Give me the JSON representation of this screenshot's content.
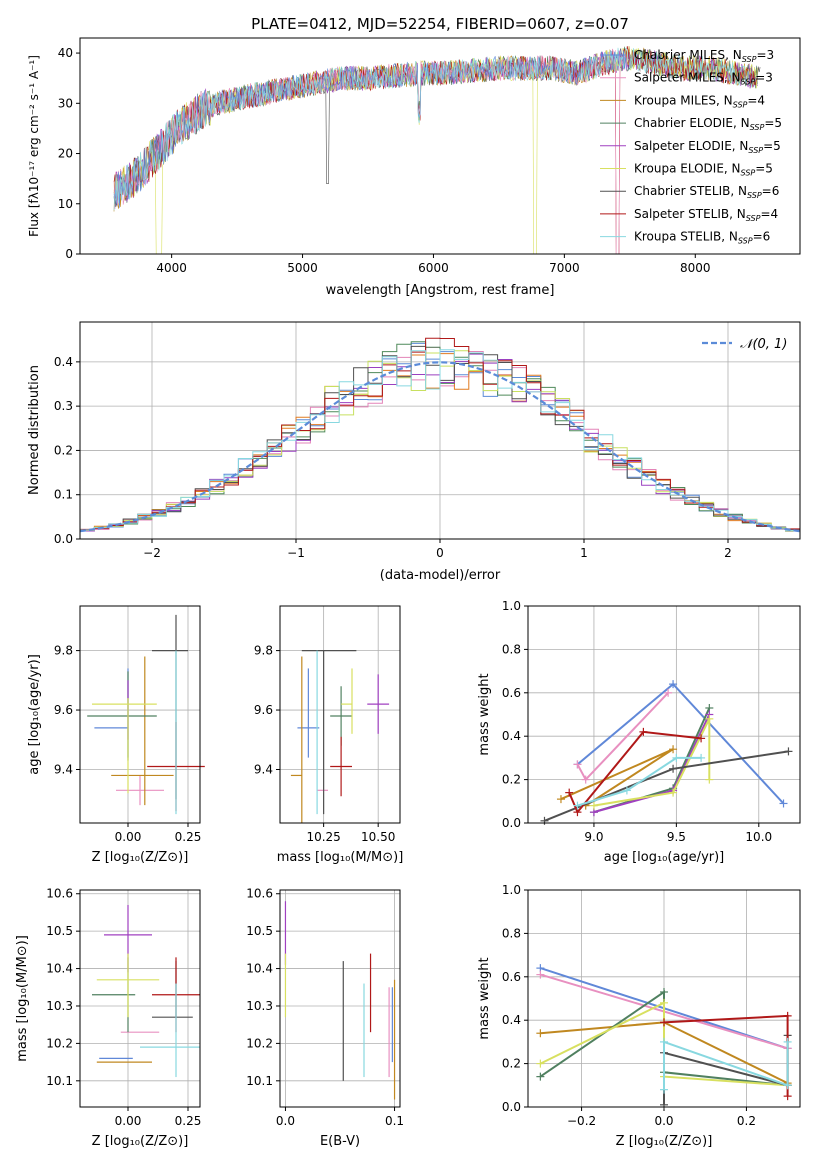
{
  "colors": [
    "#6088d8",
    "#e890c0",
    "#c08820",
    "#508060",
    "#a040c0",
    "#d8e060",
    "#505050",
    "#b01818",
    "#88d8e0"
  ],
  "colors_line": {
    "blue": "#5b8bd8",
    "pink": "#e384b8",
    "orange": "#e07b20",
    "green": "#4f8a5a",
    "purple": "#9a40c0",
    "yellow": "#c8e060",
    "gray": "#505050",
    "red": "#b01818",
    "cyan": "#88d8e0"
  },
  "chart_data": [
    {
      "id": "spectrum",
      "type": "line",
      "title": "PLATE=0412, MJD=52254, FIBERID=0607, z=0.07",
      "xlabel": "wavelength [Angstrom, rest frame]",
      "ylabel": "Flux [fλ10⁻¹⁷ erg cm⁻² s⁻¹ A⁻¹]",
      "xlim": [
        3300,
        8800
      ],
      "ylim": [
        0,
        43
      ],
      "xticks": [
        "4000",
        "5000",
        "6000",
        "7000",
        "8000"
      ],
      "yticks": [
        "0",
        "10",
        "20",
        "30",
        "40"
      ],
      "legend_position": "right",
      "series": [
        {
          "name": "Chabrier MILES, N_SSP=3",
          "color": "#6088d8"
        },
        {
          "name": "Salpeter MILES, N_SSP=3",
          "color": "#e890c0"
        },
        {
          "name": "Kroupa MILES, N_SSP=4",
          "color": "#c08820"
        },
        {
          "name": "Chabrier ELODIE, N_SSP=5",
          "color": "#508060"
        },
        {
          "name": "Salpeter ELODIE, N_SSP=5",
          "color": "#a040c0"
        },
        {
          "name": "Kroupa ELODIE, N_SSP=5",
          "color": "#d8e060"
        },
        {
          "name": "Chabrier STELIB, N_SSP=6",
          "color": "#505050"
        },
        {
          "name": "Salpeter STELIB, N_SSP=4",
          "color": "#b01818"
        },
        {
          "name": "Kroupa STELIB, N_SSP=6",
          "color": "#88d8e0"
        }
      ],
      "continuum": {
        "x": [
          3550,
          3650,
          3750,
          3850,
          3950,
          4050,
          4150,
          4250,
          4350,
          4500,
          4700,
          4900,
          5100,
          5300,
          5500,
          5700,
          5900,
          6100,
          6300,
          6500,
          6700,
          6900,
          7100,
          7300,
          7500,
          7700,
          7900,
          8100,
          8300,
          8500
        ],
        "y": [
          12,
          14,
          16,
          19,
          22,
          25,
          27,
          29,
          30,
          31,
          32,
          33,
          34,
          35,
          35,
          35.5,
          36,
          36,
          36.5,
          37,
          37,
          37,
          36,
          38,
          39,
          38,
          37,
          37,
          36,
          35
        ]
      }
    },
    {
      "id": "residuals",
      "type": "bar",
      "xlabel": "(data-model)/error",
      "ylabel": "Normed distribution",
      "xlim": [
        -2.5,
        2.5
      ],
      "ylim": [
        0,
        0.49
      ],
      "xticks": [
        "−2",
        "−1",
        "0",
        "1",
        "2"
      ],
      "yticks": [
        "0.0",
        "0.1",
        "0.2",
        "0.3",
        "0.4"
      ],
      "legend": "𝒩(0, 1)",
      "legend_position": "top-right",
      "bin_width": 0.1,
      "gaussian": {
        "mean": 0,
        "sigma": 1
      }
    },
    {
      "id": "age-vs-Z",
      "type": "scatter",
      "xlabel": "Z [log₁₀(Z/Z⊙)]",
      "ylabel": "age  [log₁₀(age/yr)]",
      "xlim": [
        -0.2,
        0.3
      ],
      "ylim": [
        9.22,
        9.95
      ],
      "xticks": [
        "0.00",
        "0.25"
      ],
      "yticks": [
        "9.4",
        "9.6",
        "9.8"
      ],
      "points": [
        {
          "x": 0.0,
          "xerr": [
            0.14,
            0.0
          ],
          "y": 9.54,
          "yerr": [
            0.1,
            0.2
          ],
          "c": 0
        },
        {
          "x": 0.05,
          "xerr": [
            0.1,
            0.1
          ],
          "y": 9.33,
          "yerr": [
            0.05,
            0.05
          ],
          "c": 1
        },
        {
          "x": 0.07,
          "xerr": [
            0.14,
            0.12
          ],
          "y": 9.38,
          "yerr": [
            0.1,
            0.4
          ],
          "c": 2
        },
        {
          "x": 0.0,
          "xerr": [
            0.17,
            0.12
          ],
          "y": 9.58,
          "yerr": [
            0.15,
            0.15
          ],
          "c": 3
        },
        {
          "x": 0.0,
          "xerr": [
            0.0,
            0.0
          ],
          "y": 9.6,
          "yerr": [
            0.1,
            0.1
          ],
          "c": 4
        },
        {
          "x": 0.0,
          "xerr": [
            0.15,
            0.12
          ],
          "y": 9.62,
          "yerr": [
            0.3,
            0.02
          ],
          "c": 5
        },
        {
          "x": 0.2,
          "xerr": [
            0.1,
            0.05
          ],
          "y": 9.8,
          "yerr": [
            0.5,
            0.12
          ],
          "c": 6
        },
        {
          "x": 0.2,
          "xerr": [
            0.12,
            0.12
          ],
          "y": 9.41,
          "yerr": [
            0.15,
            0.15
          ],
          "c": 7
        },
        {
          "x": 0.2,
          "xerr": [
            0.0,
            0.0
          ],
          "y": 9.6,
          "yerr": [
            0.35,
            0.2
          ],
          "c": 8
        }
      ]
    },
    {
      "id": "age-vs-mass",
      "type": "scatter",
      "xlabel": "mass [log₁₀(M/M⊙)]",
      "ylabel": "",
      "xlim": [
        10.05,
        10.6
      ],
      "ylim": [
        9.22,
        9.95
      ],
      "xticks": [
        "10.25",
        "10.50"
      ],
      "yticks": [
        "9.4",
        "9.6",
        "9.8"
      ],
      "points": [
        {
          "x": 10.18,
          "xerr": [
            0.05,
            0.05
          ],
          "y": 9.54,
          "yerr": [
            0.1,
            0.2
          ],
          "c": 0
        },
        {
          "x": 10.27,
          "xerr": [
            0.05,
            0.0
          ],
          "y": 9.33,
          "yerr": [
            0.0,
            0.0
          ],
          "c": 1
        },
        {
          "x": 10.15,
          "xerr": [
            0.05,
            0.0
          ],
          "y": 9.38,
          "yerr": [
            0.16,
            0.4
          ],
          "c": 2
        },
        {
          "x": 10.33,
          "xerr": [
            0.05,
            0.05
          ],
          "y": 9.58,
          "yerr": [
            0.1,
            0.1
          ],
          "c": 3
        },
        {
          "x": 10.5,
          "xerr": [
            0.05,
            0.05
          ],
          "y": 9.62,
          "yerr": [
            0.1,
            0.1
          ],
          "c": 4
        },
        {
          "x": 10.38,
          "xerr": [
            0.05,
            0.0
          ],
          "y": 9.62,
          "yerr": [
            0.1,
            0.12
          ],
          "c": 5
        },
        {
          "x": 10.25,
          "xerr": [
            0.1,
            0.15
          ],
          "y": 9.8,
          "yerr": [
            0.55,
            0.0
          ],
          "c": 6
        },
        {
          "x": 10.33,
          "xerr": [
            0.05,
            0.05
          ],
          "y": 9.41,
          "yerr": [
            0.1,
            0.1
          ],
          "c": 7
        },
        {
          "x": 10.22,
          "xerr": [
            0.0,
            0.0
          ],
          "y": 9.5,
          "yerr": [
            0.25,
            0.3
          ],
          "c": 8
        }
      ]
    },
    {
      "id": "mass-weight-vs-age",
      "type": "line",
      "xlabel": "age  [log₁₀(age/yr)]",
      "ylabel": "mass weight",
      "xlim": [
        8.6,
        10.25
      ],
      "ylim": [
        0,
        1
      ],
      "xticks": [
        "9.0",
        "9.5",
        "10.0"
      ],
      "yticks": [
        "0.0",
        "0.2",
        "0.4",
        "0.6",
        "0.8",
        "1.0"
      ],
      "series": [
        {
          "c": 0,
          "x": [
            8.9,
            9.48,
            10.15
          ],
          "y": [
            0.27,
            0.64,
            0.09
          ]
        },
        {
          "c": 1,
          "x": [
            8.9,
            8.95,
            9.45
          ],
          "y": [
            0.27,
            0.2,
            0.6
          ]
        },
        {
          "c": 2,
          "x": [
            8.8,
            9.48,
            8.95
          ],
          "y": [
            0.11,
            0.34,
            0.08
          ]
        },
        {
          "c": 3,
          "x": [
            9.0,
            9.48,
            9.7
          ],
          "y": [
            0.05,
            0.16,
            0.53
          ]
        },
        {
          "c": 4,
          "x": [
            9.0,
            9.48,
            9.7
          ],
          "y": [
            0.05,
            0.15,
            0.5
          ]
        },
        {
          "c": 5,
          "x": [
            9.0,
            9.48,
            9.7,
            9.7
          ],
          "y": [
            0.08,
            0.14,
            0.48,
            0.2
          ]
        },
        {
          "c": 6,
          "x": [
            8.7,
            9.48,
            10.18
          ],
          "y": [
            0.01,
            0.25,
            0.33
          ]
        },
        {
          "c": 7,
          "x": [
            8.85,
            8.9,
            9.3,
            9.65
          ],
          "y": [
            0.14,
            0.05,
            0.42,
            0.39
          ]
        },
        {
          "c": 8,
          "x": [
            8.9,
            9.2,
            9.5,
            9.65
          ],
          "y": [
            0.08,
            0.15,
            0.3,
            0.3
          ]
        }
      ]
    },
    {
      "id": "mass-vs-Z",
      "type": "scatter",
      "xlabel": "Z [log₁₀(Z/Z⊙)]",
      "ylabel": "mass [log₁₀(M/M⊙)]",
      "xlim": [
        -0.2,
        0.3
      ],
      "ylim": [
        10.03,
        10.61
      ],
      "xticks": [
        "0.00",
        "0.25"
      ],
      "yticks": [
        "10.1",
        "10.2",
        "10.3",
        "10.4",
        "10.5",
        "10.6"
      ],
      "points": [
        {
          "x": 0.0,
          "xerr": [
            0.12,
            0.02
          ],
          "y": 10.16,
          "yerr": [
            0.0,
            0.0
          ],
          "c": 0
        },
        {
          "x": 0.05,
          "xerr": [
            0.08,
            0.08
          ],
          "y": 10.23,
          "yerr": [
            0.0,
            0.0
          ],
          "c": 1
        },
        {
          "x": 0.0,
          "xerr": [
            0.13,
            0.1
          ],
          "y": 10.15,
          "yerr": [
            0.0,
            0.0
          ],
          "c": 2
        },
        {
          "x": 0.0,
          "xerr": [
            0.15,
            0.03
          ],
          "y": 10.33,
          "yerr": [
            0.1,
            0.1
          ],
          "c": 3
        },
        {
          "x": 0.0,
          "xerr": [
            0.1,
            0.1
          ],
          "y": 10.49,
          "yerr": [
            0.1,
            0.08
          ],
          "c": 4
        },
        {
          "x": 0.0,
          "xerr": [
            0.13,
            0.13
          ],
          "y": 10.37,
          "yerr": [
            0.1,
            0.07
          ],
          "c": 5
        },
        {
          "x": 0.2,
          "xerr": [
            0.1,
            0.07
          ],
          "y": 10.27,
          "yerr": [
            0.0,
            0.15
          ],
          "c": 6
        },
        {
          "x": 0.2,
          "xerr": [
            0.1,
            0.1
          ],
          "y": 10.33,
          "yerr": [
            0.1,
            0.1
          ],
          "c": 7
        },
        {
          "x": 0.2,
          "xerr": [
            0.15,
            0.1
          ],
          "y": 10.19,
          "yerr": [
            0.08,
            0.17
          ],
          "c": 8
        }
      ]
    },
    {
      "id": "mass-vs-EBV",
      "type": "scatter",
      "xlabel": "E(B-V)",
      "ylabel": "",
      "xlim": [
        -0.005,
        0.105
      ],
      "ylim": [
        10.03,
        10.61
      ],
      "xticks": [
        "0.0",
        "0.1"
      ],
      "yticks": [
        "10.1",
        "10.2",
        "10.3",
        "10.4",
        "10.5",
        "10.6"
      ],
      "points": [
        {
          "x": 0.0,
          "xerr": [
            0,
            0
          ],
          "y": 10.49,
          "yerr": [
            0.08,
            0.09
          ],
          "c": 4
        },
        {
          "x": 0.0,
          "xerr": [
            0,
            0
          ],
          "y": 10.37,
          "yerr": [
            0.1,
            0.07
          ],
          "c": 5
        },
        {
          "x": 0.053,
          "xerr": [
            0,
            0
          ],
          "y": 10.27,
          "yerr": [
            0.17,
            0.15
          ],
          "c": 6
        },
        {
          "x": 0.078,
          "xerr": [
            0,
            0
          ],
          "y": 10.33,
          "yerr": [
            0.1,
            0.11
          ],
          "c": 7
        },
        {
          "x": 0.072,
          "xerr": [
            0,
            0
          ],
          "y": 10.23,
          "yerr": [
            0.12,
            0.13
          ],
          "c": 8
        },
        {
          "x": 0.1,
          "xerr": [
            0,
            0
          ],
          "y": 10.17,
          "yerr": [
            0.12,
            0.2
          ],
          "c": 2
        },
        {
          "x": 0.095,
          "xerr": [
            0,
            0
          ],
          "y": 10.23,
          "yerr": [
            0.12,
            0.12
          ],
          "c": 1
        },
        {
          "x": 0.098,
          "xerr": [
            0,
            0
          ],
          "y": 10.25,
          "yerr": [
            0.1,
            0.1
          ],
          "c": 0
        }
      ]
    },
    {
      "id": "mass-weight-vs-Z",
      "type": "line",
      "xlabel": "Z [log₁₀(Z/Z⊙)]",
      "ylabel": "mass weight",
      "xlim": [
        -0.33,
        0.33
      ],
      "ylim": [
        0,
        1
      ],
      "xticks": [
        "−0.2",
        "0.0",
        "0.2"
      ],
      "yticks": [
        "0.0",
        "0.2",
        "0.4",
        "0.6",
        "0.8",
        "1.0"
      ],
      "series": [
        {
          "c": 0,
          "x": [
            -0.3,
            0.3
          ],
          "y": [
            0.64,
            0.27
          ]
        },
        {
          "c": 1,
          "x": [
            -0.3,
            0.3
          ],
          "y": [
            0.61,
            0.27
          ]
        },
        {
          "c": 2,
          "x": [
            -0.3,
            0.0,
            0.3
          ],
          "y": [
            0.34,
            0.39,
            0.11
          ]
        },
        {
          "c": 3,
          "x": [
            -0.3,
            0.0,
            0.0,
            0.3
          ],
          "y": [
            0.14,
            0.53,
            0.16,
            0.1
          ]
        },
        {
          "c": 5,
          "x": [
            -0.3,
            0.0,
            0.0,
            0.3
          ],
          "y": [
            0.2,
            0.48,
            0.14,
            0.1
          ]
        },
        {
          "c": 6,
          "x": [
            0.0,
            0.0,
            0.3,
            0.3
          ],
          "y": [
            0.01,
            0.25,
            0.1,
            0.33
          ]
        },
        {
          "c": 7,
          "x": [
            0.0,
            0.3,
            0.3
          ],
          "y": [
            0.39,
            0.42,
            0.05
          ]
        },
        {
          "c": 8,
          "x": [
            0.0,
            0.0,
            0.3,
            0.3
          ],
          "y": [
            0.08,
            0.3,
            0.1,
            0.3
          ]
        }
      ]
    }
  ]
}
